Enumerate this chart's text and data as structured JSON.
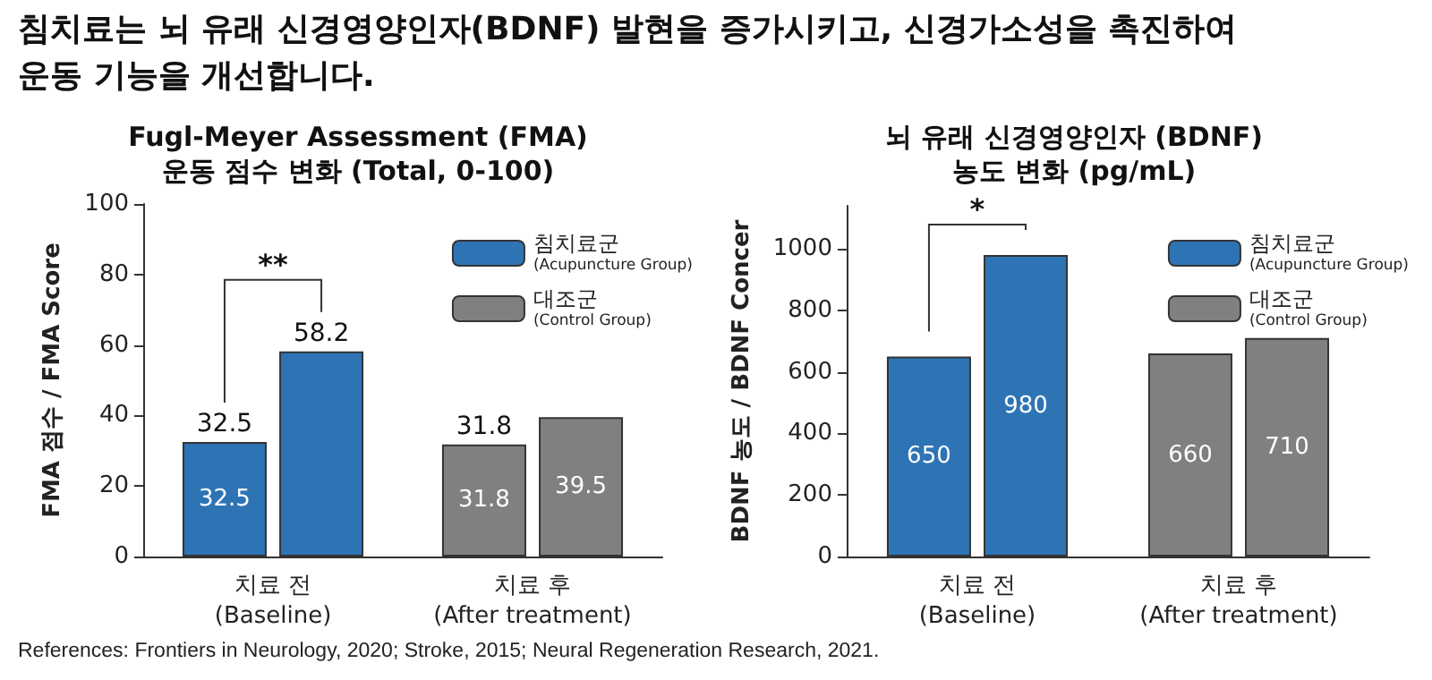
{
  "chart_data": [
    {
      "type": "bar",
      "title": "Fugl-Meyer Assessment (FMA)\n운동 점수 변화 (Total, 0-100)",
      "ylabel": "FMA 점수 / FMA Score",
      "categories": [
        "치료 전\n(Baseline)",
        "치료 후\n(After treatment)"
      ],
      "series": [
        {
          "name": "침치료군\n(Acupuncture Group)",
          "color": "#2e74b5",
          "colors": [
            "#2e74b5",
            "#808080"
          ],
          "values": [
            32.5,
            31.8
          ],
          "value_labels": [
            "32.5",
            "31.8"
          ]
        },
        {
          "name": "대조군\n(Control Group)",
          "color": "#808080",
          "colors": [
            "#2e74b5",
            "#808080"
          ],
          "values": [
            58.2,
            39.5
          ],
          "value_labels": [
            null,
            "39.5"
          ]
        }
      ],
      "ylim": [
        0,
        100
      ],
      "yticks": [
        0,
        20,
        40,
        60,
        80,
        100
      ],
      "grid": false,
      "legend": "top right",
      "annotations": [
        "침치료는 뇌 유래 신경영양인자(BDNF) 발현을 증가시키고, 신경가소성을 촉진하여\n운동 기능을 개선합니다.",
        "References: Frontiers in Neurology, 2020; Stroke, 2015; Neural Regeneration Research, 2021.",
        "**",
        {
          "text": "32.5",
          "x": "치료 전\n(Baseline)",
          "y": 32.5
        },
        {
          "text": "58.2",
          "x": "치료 전\n(Baseline)",
          "y": 58.2
        },
        {
          "text": "31.8",
          "x": "치료 후\n(After treatment)",
          "y": 31.8
        }
      ]
    },
    {
      "type": "bar",
      "title": "뇌 유래 신경영양인자 (BDNF)\n농도 변화 (pg/mL)",
      "ylabel": "BDNF 농도 / BDNF Concer",
      "categories": [
        "치료 전\n(Baseline)",
        "치료 후\n(After treatment)"
      ],
      "series": [
        {
          "name": "침치료군\n(Acupuncture Group)",
          "color": "#2e74b5",
          "colors": [
            "#2e74b5",
            "#808080"
          ],
          "values": [
            650,
            660
          ]
        },
        {
          "name": "대조군\n(Control Group)",
          "color": "#808080",
          "colors": [
            "#2e74b5",
            "#808080"
          ],
          "values": [
            980,
            710
          ]
        }
      ],
      "ylim": [
        0,
        1140
      ],
      "yticks": [
        0,
        200,
        400,
        600,
        800,
        1000
      ],
      "grid": false,
      "legend": "top right",
      "data_labels": true,
      "annotations": [
        "*"
      ]
    }
  ]
}
